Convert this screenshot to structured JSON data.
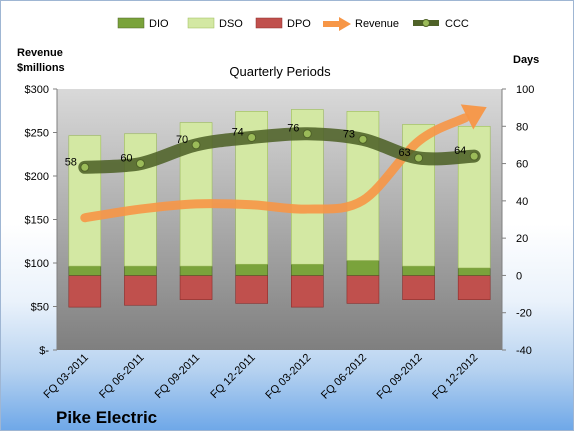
{
  "chart_data": {
    "type": "bar",
    "title": "Quarterly Periods",
    "company": "Pike Electric",
    "left_axis_label_line1": "Revenue",
    "left_axis_label_line2": "$millions",
    "right_axis_label": "Days",
    "categories": [
      "FQ 03-2011",
      "FQ 06-2011",
      "FQ 09-2011",
      "FQ 12-2011",
      "FQ 03-2012",
      "FQ 06-2012",
      "FQ 09-2012",
      "FQ 12-2012"
    ],
    "left_axis": {
      "min": 0,
      "max": 300,
      "ticks": [
        "$-",
        "$50",
        "$100",
        "$150",
        "$200",
        "$250",
        "$300"
      ]
    },
    "right_axis": {
      "min": -40,
      "max": 100,
      "ticks": [
        "-40",
        "-20",
        "0",
        "20",
        "40",
        "60",
        "80",
        "100"
      ]
    },
    "series": [
      {
        "name": "DIO",
        "axis": "right",
        "color": "#7aa33b",
        "values": [
          5,
          5,
          5,
          6,
          6,
          8,
          5,
          4
        ]
      },
      {
        "name": "DSO",
        "axis": "right",
        "color": "#d3e8a3",
        "values": [
          70,
          71,
          77,
          82,
          83,
          80,
          76,
          76
        ]
      },
      {
        "name": "DPO",
        "axis": "right",
        "color": "#c0504d",
        "values": [
          -17,
          -16,
          -13,
          -15,
          -17,
          -15,
          -13,
          -13
        ]
      },
      {
        "name": "Revenue",
        "axis": "left",
        "color": "#f79646",
        "values": [
          152,
          162,
          168,
          167,
          162,
          172,
          240,
          272
        ]
      },
      {
        "name": "CCC",
        "axis": "right",
        "color": "#4f6228",
        "values": [
          58,
          60,
          70,
          74,
          76,
          73,
          63,
          64
        ]
      }
    ],
    "ccc_labels": [
      "58",
      "60",
      "70",
      "74",
      "76",
      "73",
      "63",
      "64"
    ],
    "legend_position": "top",
    "grid": false
  }
}
